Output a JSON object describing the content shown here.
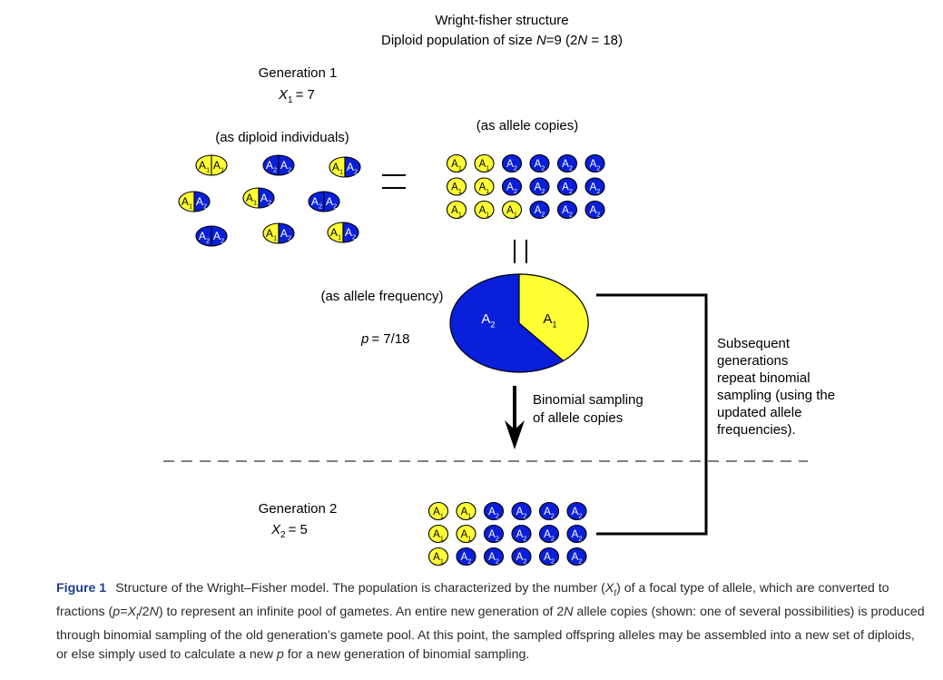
{
  "title": {
    "line1": "Wright-fisher structure",
    "line2_parts": [
      "Diploid population of size ",
      "N",
      "=9 (2",
      "N",
      " = 18)"
    ]
  },
  "generation1": {
    "label": "Generation 1",
    "count": {
      "var": "X",
      "sub": "1",
      "value": "= 7"
    }
  },
  "diploid_label": "(as diploid individuals)",
  "allele_copies_label": "(as allele copies)",
  "allele_frequency_label": "(as allele frequency)",
  "frequency_text": {
    "var": "p",
    "value": "= 7/18"
  },
  "alleles": {
    "A1": {
      "base": "A",
      "sub": "1",
      "color": "#ffff33"
    },
    "A2": {
      "base": "A",
      "sub": "2",
      "color": "#0a1fd9"
    }
  },
  "diploids": [
    [
      "A1",
      "A1"
    ],
    [
      "A2",
      "A2"
    ],
    [
      "A1",
      "A2"
    ],
    [
      "A1",
      "A2"
    ],
    [
      "A1",
      "A2"
    ],
    [
      "A2",
      "A2"
    ],
    [
      "A2",
      "A2"
    ],
    [
      "A1",
      "A2"
    ],
    [
      "A1",
      "A2"
    ]
  ],
  "gen1_allele_grid": [
    [
      "A1",
      "A1",
      "A2",
      "A2",
      "A2",
      "A2"
    ],
    [
      "A1",
      "A1",
      "A2",
      "A2",
      "A2",
      "A2"
    ],
    [
      "A1",
      "A1",
      "A1",
      "A2",
      "A2",
      "A2"
    ]
  ],
  "pie": {
    "A1": 7,
    "A2": 11,
    "labels": {
      "A1": "A1",
      "A2": "A2"
    }
  },
  "sampling_label": [
    "Binomial sampling",
    "of allele copies"
  ],
  "subsequent_label": [
    "Subsequent",
    "generations",
    "repeat binomial",
    "sampling (using the",
    "updated allele",
    "frequencies)."
  ],
  "generation2": {
    "label": "Generation 2",
    "count": {
      "var": "X",
      "sub": "2",
      "value": "= 5"
    }
  },
  "gen2_allele_grid": [
    [
      "A1",
      "A1",
      "A2",
      "A2",
      "A2",
      "A2"
    ],
    [
      "A1",
      "A1",
      "A2",
      "A2",
      "A2",
      "A2"
    ],
    [
      "A1",
      "A2",
      "A2",
      "A2",
      "A2",
      "A2"
    ]
  ],
  "caption": {
    "label": "Figure 1",
    "parts": [
      {
        "t": "Structure of the Wright–Fisher model. The population is characterized by the number ("
      },
      {
        "t": "X",
        "i": true
      },
      {
        "t": "t",
        "i": true,
        "sub": true
      },
      {
        "t": ") of a focal type of allele, which are converted to fractions ("
      },
      {
        "t": "p",
        "i": true
      },
      {
        "t": "="
      },
      {
        "t": "X",
        "i": true
      },
      {
        "t": "t",
        "i": true,
        "sub": true
      },
      {
        "t": "/2"
      },
      {
        "t": "N",
        "i": true
      },
      {
        "t": ") to represent an infinite pool of gametes. An entire new generation of 2"
      },
      {
        "t": "N",
        "i": true
      },
      {
        "t": " allele copies (shown: one of several possibilities) is produced through binomial sampling of the old generation’s gamete pool. At this point, the sampled offspring alleles may be assembled into a new set of diploids, or else simply used to calculate a new "
      },
      {
        "t": "p",
        "i": true
      },
      {
        "t": " for a new generation of binomial sampling."
      }
    ]
  }
}
